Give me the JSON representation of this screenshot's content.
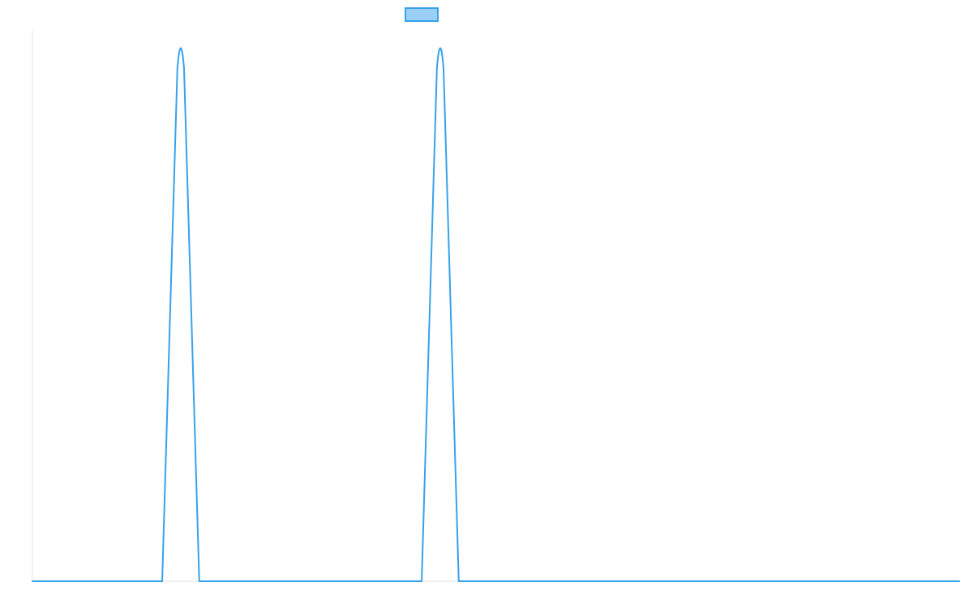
{
  "chart_data": {
    "type": "line",
    "title": "",
    "xlabel": "",
    "ylabel": "",
    "x": [
      0,
      35,
      40,
      45,
      105,
      110,
      115,
      250
    ],
    "series": [
      {
        "label": "",
        "values": [
          0,
          0,
          1,
          0,
          0,
          1,
          0,
          0
        ],
        "color": "#36a2eb",
        "legend_fill": "#9ad0f5"
      }
    ],
    "xlim": [
      0,
      250
    ],
    "ylim": [
      0,
      1
    ],
    "legend": "top-center",
    "grid": false,
    "peak_shape": "narrow rounded spikes"
  }
}
